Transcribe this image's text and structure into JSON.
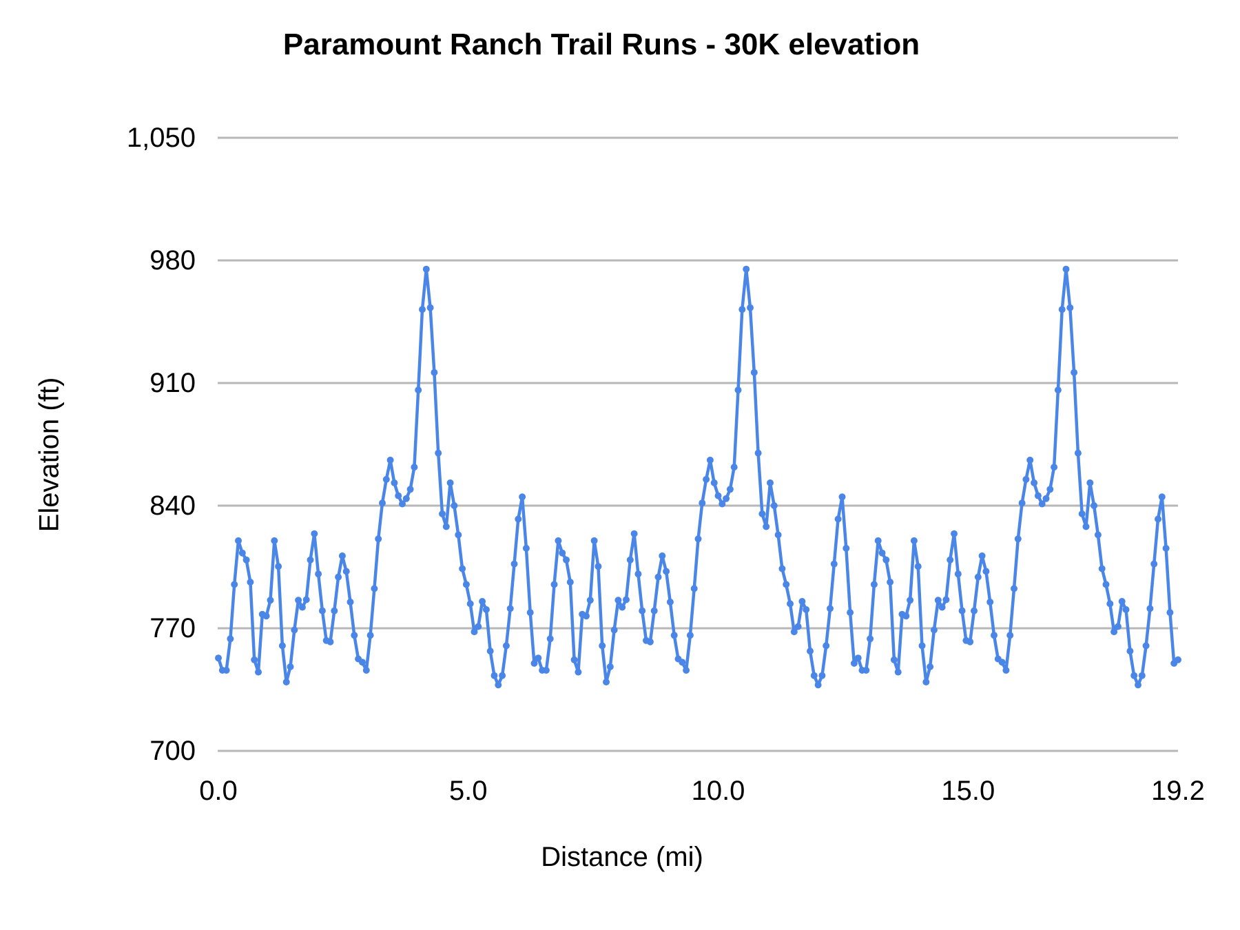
{
  "title": "Paramount Ranch Trail Runs - 30K elevation",
  "colors": {
    "series": "#4a86e8",
    "gridline": "#b7b7b7",
    "text": "#000000",
    "background": "#ffffff"
  },
  "chart_data": {
    "type": "line",
    "title": "Paramount Ranch Trail Runs - 30K elevation",
    "xlabel": "Distance (mi)",
    "ylabel": "Elevation (ft)",
    "xlim": [
      0,
      19.2
    ],
    "ylim": [
      700,
      1050
    ],
    "x_ticks": [
      {
        "value": 0,
        "label": "0.0"
      },
      {
        "value": 5,
        "label": "5.0"
      },
      {
        "value": 10,
        "label": "10.0"
      },
      {
        "value": 15,
        "label": "15.0"
      },
      {
        "value": 19.2,
        "label": "19.2"
      }
    ],
    "y_ticks": [
      {
        "value": 1050,
        "label": "1,050"
      },
      {
        "value": 980,
        "label": "980"
      },
      {
        "value": 910,
        "label": "910"
      },
      {
        "value": 840,
        "label": "840"
      },
      {
        "value": 770,
        "label": "770"
      },
      {
        "value": 700,
        "label": "700"
      }
    ],
    "grid": "horizontal",
    "legend": "none",
    "markers": true,
    "laps": 3,
    "lap_length_mi": 6.4,
    "sample_step_mi": 0.08,
    "lap_profile": [
      [
        0.0,
        753
      ],
      [
        0.06,
        748
      ],
      [
        0.12,
        742
      ],
      [
        0.18,
        748
      ],
      [
        0.24,
        764
      ],
      [
        0.32,
        795
      ],
      [
        0.4,
        820
      ],
      [
        0.44,
        826
      ],
      [
        0.48,
        813
      ],
      [
        0.52,
        820
      ],
      [
        0.56,
        809
      ],
      [
        0.6,
        817
      ],
      [
        0.66,
        786
      ],
      [
        0.72,
        752
      ],
      [
        0.78,
        740
      ],
      [
        0.84,
        755
      ],
      [
        0.88,
        778
      ],
      [
        0.92,
        790
      ],
      [
        0.96,
        777
      ],
      [
        1.0,
        772
      ],
      [
        1.06,
        793
      ],
      [
        1.12,
        820
      ],
      [
        1.16,
        826
      ],
      [
        1.22,
        795
      ],
      [
        1.28,
        760
      ],
      [
        1.34,
        740
      ],
      [
        1.4,
        738
      ],
      [
        1.48,
        758
      ],
      [
        1.56,
        780
      ],
      [
        1.62,
        789
      ],
      [
        1.68,
        782
      ],
      [
        1.74,
        781
      ],
      [
        1.8,
        797
      ],
      [
        1.86,
        815
      ],
      [
        1.9,
        826
      ],
      [
        1.94,
        822
      ],
      [
        2.0,
        801
      ],
      [
        2.08,
        780
      ],
      [
        2.16,
        763
      ],
      [
        2.22,
        758
      ],
      [
        2.3,
        775
      ],
      [
        2.38,
        795
      ],
      [
        2.46,
        812
      ],
      [
        2.52,
        810
      ],
      [
        2.6,
        795
      ],
      [
        2.68,
        775
      ],
      [
        2.76,
        757
      ],
      [
        2.84,
        748
      ],
      [
        2.9,
        752
      ],
      [
        2.96,
        746
      ],
      [
        3.02,
        760
      ],
      [
        3.08,
        778
      ],
      [
        3.14,
        800
      ],
      [
        3.22,
        828
      ],
      [
        3.3,
        846
      ],
      [
        3.38,
        858
      ],
      [
        3.44,
        866
      ],
      [
        3.5,
        858
      ],
      [
        3.56,
        843
      ],
      [
        3.62,
        847
      ],
      [
        3.68,
        841
      ],
      [
        3.74,
        843
      ],
      [
        3.8,
        846
      ],
      [
        3.86,
        851
      ],
      [
        3.92,
        862
      ],
      [
        3.96,
        880
      ],
      [
        4.0,
        906
      ],
      [
        4.04,
        930
      ],
      [
        4.08,
        952
      ],
      [
        4.12,
        969
      ],
      [
        4.16,
        975
      ],
      [
        4.2,
        967
      ],
      [
        4.26,
        946
      ],
      [
        4.32,
        916
      ],
      [
        4.38,
        880
      ],
      [
        4.44,
        850
      ],
      [
        4.5,
        828
      ],
      [
        4.54,
        822
      ],
      [
        4.6,
        840
      ],
      [
        4.64,
        853
      ],
      [
        4.68,
        850
      ],
      [
        4.72,
        840
      ],
      [
        4.78,
        829
      ],
      [
        4.84,
        812
      ],
      [
        4.9,
        800
      ],
      [
        4.96,
        795
      ],
      [
        5.02,
        788
      ],
      [
        5.08,
        776
      ],
      [
        5.14,
        764
      ],
      [
        5.2,
        771
      ],
      [
        5.26,
        783
      ],
      [
        5.32,
        790
      ],
      [
        5.38,
        776
      ],
      [
        5.44,
        757
      ],
      [
        5.5,
        745
      ],
      [
        5.56,
        739
      ],
      [
        5.62,
        737
      ],
      [
        5.68,
        743
      ],
      [
        5.74,
        755
      ],
      [
        5.82,
        775
      ],
      [
        5.9,
        800
      ],
      [
        5.98,
        827
      ],
      [
        6.04,
        843
      ],
      [
        6.08,
        845
      ],
      [
        6.14,
        825
      ],
      [
        6.2,
        797
      ],
      [
        6.26,
        770
      ],
      [
        6.32,
        750
      ],
      [
        6.38,
        742
      ]
    ],
    "final_point": [
      19.2,
      752
    ]
  }
}
